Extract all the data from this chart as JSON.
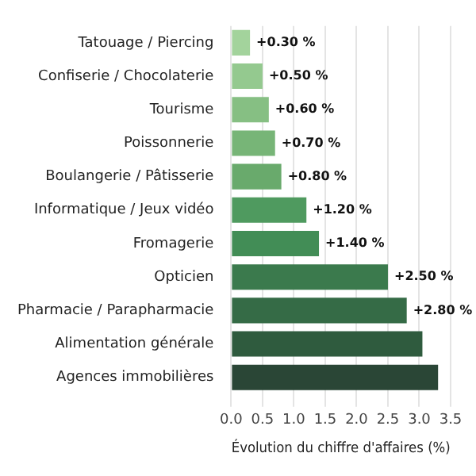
{
  "chart_data": {
    "type": "bar",
    "orientation": "horizontal",
    "categories": [
      "Tatouage / Piercing",
      "Confiserie / Chocolaterie",
      "Tourisme",
      "Poissonnerie",
      "Boulangerie / Pâtisserie",
      "Informatique / Jeux vidéo",
      "Fromagerie",
      "Opticien",
      "Pharmacie / Parapharmacie",
      "Alimentation générale",
      "Agences immobilières"
    ],
    "values": [
      0.3,
      0.5,
      0.6,
      0.7,
      0.8,
      1.2,
      1.4,
      2.5,
      2.8,
      3.05,
      3.3
    ],
    "colors": [
      "#a3d39c",
      "#94c98f",
      "#86bf83",
      "#77b577",
      "#69aa6c",
      "#4f9a5f",
      "#428d56",
      "#3b7a4d",
      "#356b46",
      "#2f5b3e",
      "#2a4636"
    ],
    "value_labels": [
      "+0.30 %",
      "+0.50 %",
      "+0.60 %",
      "+0.70 %",
      "+0.80 %",
      "+1.20 %",
      "+1.40 %",
      "+2.50 %",
      "+2.80 %",
      null,
      null
    ],
    "xlabel": "Évolution du chiffre d'affaires (%)",
    "xlim": [
      0,
      3.5
    ],
    "xticks": [
      {
        "value": 0,
        "label": "0.0"
      },
      0.5,
      {
        "value": 1,
        "label": "1.0"
      },
      1.5,
      {
        "value": 2,
        "label": "2.0"
      },
      2.5,
      {
        "value": 3,
        "label": "3.0"
      },
      3.5
    ],
    "grid": "x",
    "legend": false
  }
}
